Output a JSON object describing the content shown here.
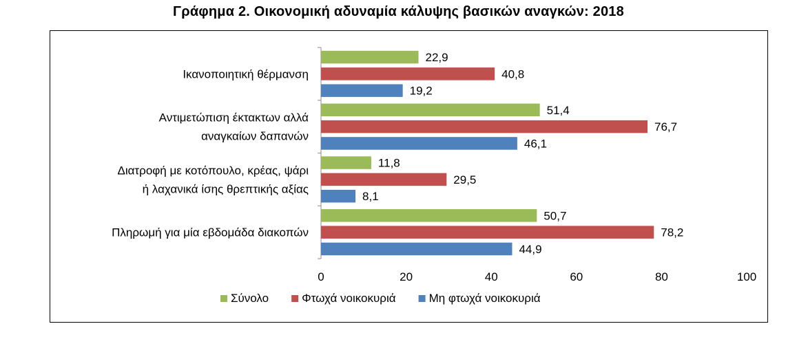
{
  "chart_data": {
    "type": "bar",
    "orientation": "horizontal",
    "title": "Γράφημα 2. Οικονομική αδυναμία κάλυψης βασικών αναγκών: 2018",
    "categories": [
      [
        "Ικανοποιητική θέρμανση"
      ],
      [
        "Αντιμετώπιση έκτακτων αλλά",
        "αναγκαίων δαπανών"
      ],
      [
        "Διατροφή με κοτόπουλο, κρέας,  ψάρι",
        "ή λαχανικά ίσης θρεπτικής αξίας"
      ],
      [
        "Πληρωμή  για μία εβδομάδα διακοπών"
      ]
    ],
    "series": [
      {
        "name": "Σύνολο",
        "color": "#9BBB59",
        "values": [
          22.9,
          51.4,
          11.8,
          50.7
        ]
      },
      {
        "name": "Φτωχά νοικοκυριά",
        "color": "#C0504D",
        "values": [
          40.8,
          76.7,
          29.5,
          78.2
        ]
      },
      {
        "name": "Μη φτωχά νοικοκυριά",
        "color": "#4F81BD",
        "values": [
          19.2,
          46.1,
          8.1,
          44.9
        ]
      }
    ],
    "xlim": [
      0,
      100
    ],
    "xticks": [
      0,
      20,
      40,
      60,
      80,
      100
    ],
    "decimal_separator": ",",
    "grid": false,
    "legend_position": "bottom"
  }
}
